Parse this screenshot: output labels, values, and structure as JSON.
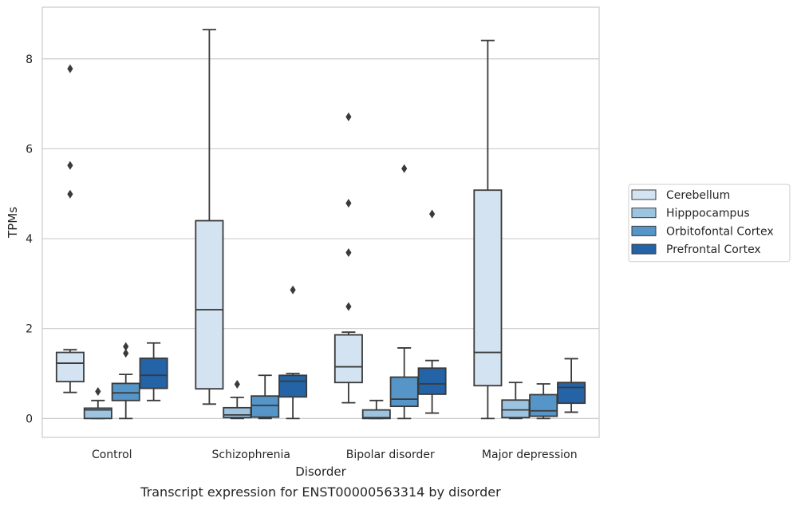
{
  "chart_data": {
    "type": "box",
    "title": "",
    "caption": "Transcript expression for ENST00000563314 by disorder",
    "xlabel": "Disorder",
    "ylabel": "TPMs",
    "ylim": [
      -0.42,
      9.15
    ],
    "yticks": [
      0,
      2,
      4,
      6,
      8
    ],
    "grid": "horizontal",
    "legend_position": "right",
    "categories": [
      "Control",
      "Schizophrenia",
      "Bipolar disorder",
      "Major depression"
    ],
    "series": [
      {
        "name": "Cerebellum",
        "color": "#d4e3f2",
        "boxes": [
          {
            "whislo": 0.58,
            "q1": 0.82,
            "med": 1.23,
            "q3": 1.47,
            "whishi": 1.53,
            "fliers": [
              4.99,
              5.63,
              7.78
            ]
          },
          {
            "whislo": 0.32,
            "q1": 0.66,
            "med": 2.42,
            "q3": 4.4,
            "whishi": 8.65,
            "fliers": []
          },
          {
            "whislo": 0.35,
            "q1": 0.8,
            "med": 1.15,
            "q3": 1.86,
            "whishi": 1.92,
            "fliers": [
              2.49,
              3.69,
              4.79,
              6.71
            ]
          },
          {
            "whislo": 0.0,
            "q1": 0.73,
            "med": 1.47,
            "q3": 5.08,
            "whishi": 8.41,
            "fliers": []
          }
        ]
      },
      {
        "name": "Hipppocampus",
        "color": "#9cc4e1",
        "boxes": [
          {
            "whislo": 0.0,
            "q1": 0.0,
            "med": 0.19,
            "q3": 0.23,
            "whishi": 0.4,
            "fliers": [
              0.6
            ]
          },
          {
            "whislo": 0.0,
            "q1": 0.02,
            "med": 0.08,
            "q3": 0.24,
            "whishi": 0.47,
            "fliers": [
              0.76
            ]
          },
          {
            "whislo": 0.0,
            "q1": 0.0,
            "med": 0.02,
            "q3": 0.19,
            "whishi": 0.4,
            "fliers": []
          },
          {
            "whislo": 0.0,
            "q1": 0.02,
            "med": 0.19,
            "q3": 0.41,
            "whishi": 0.8,
            "fliers": []
          }
        ]
      },
      {
        "name": "Orbitofontal Cortex",
        "color": "#5595c7",
        "boxes": [
          {
            "whislo": 0.0,
            "q1": 0.4,
            "med": 0.57,
            "q3": 0.78,
            "whishi": 0.98,
            "fliers": [
              1.45,
              1.6
            ]
          },
          {
            "whislo": 0.0,
            "q1": 0.03,
            "med": 0.29,
            "q3": 0.5,
            "whishi": 0.96,
            "fliers": []
          },
          {
            "whislo": 0.0,
            "q1": 0.27,
            "med": 0.43,
            "q3": 0.92,
            "whishi": 1.57,
            "fliers": [
              5.56
            ]
          },
          {
            "whislo": 0.0,
            "q1": 0.05,
            "med": 0.17,
            "q3": 0.53,
            "whishi": 0.77,
            "fliers": []
          }
        ]
      },
      {
        "name": "Prefrontal Cortex",
        "color": "#2363a6",
        "boxes": [
          {
            "whislo": 0.4,
            "q1": 0.67,
            "med": 0.96,
            "q3": 1.34,
            "whishi": 1.68,
            "fliers": []
          },
          {
            "whislo": 0.0,
            "q1": 0.48,
            "med": 0.83,
            "q3": 0.96,
            "whishi": 1.0,
            "fliers": [
              2.86
            ]
          },
          {
            "whislo": 0.12,
            "q1": 0.54,
            "med": 0.77,
            "q3": 1.12,
            "whishi": 1.29,
            "fliers": [
              4.55
            ]
          },
          {
            "whislo": 0.14,
            "q1": 0.34,
            "med": 0.69,
            "q3": 0.8,
            "whishi": 1.33,
            "fliers": []
          }
        ]
      }
    ]
  }
}
